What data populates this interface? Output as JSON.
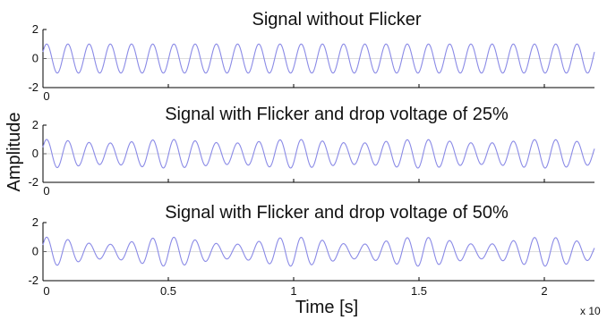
{
  "chart_data": {
    "type": "line",
    "xlabel": "Time [s]",
    "ylabel": "Amplitude",
    "x_exponent_label": "x 10",
    "xlim": [
      0,
      2.2
    ],
    "ylim": [
      -2,
      2
    ],
    "x_ticks": [
      0,
      0.5,
      1,
      1.5,
      2
    ],
    "x_tick_labels": [
      "0",
      "0.5",
      "1",
      "1.5",
      "2"
    ],
    "y_ticks": [
      -2,
      0,
      2
    ],
    "y_tick_labels": [
      "-2",
      "0",
      "2"
    ],
    "line_color": "#8a8ae6",
    "axis_color": "#000000",
    "signal_cycles_shown": 26,
    "panels": [
      {
        "title": "Signal without Flicker",
        "amplitude": 1.0,
        "flicker_depth": 0.0,
        "flicker_cycles": 0,
        "show_x_tick_labels": false
      },
      {
        "title": "Signal with Flicker and drop voltage of 25%",
        "amplitude": 1.0,
        "flicker_depth": 0.25,
        "flicker_cycles": 4.4,
        "show_x_tick_labels": false
      },
      {
        "title": "Signal with Flicker and drop voltage of 50%",
        "amplitude": 1.0,
        "flicker_depth": 0.5,
        "flicker_cycles": 4.4,
        "show_x_tick_labels": true
      }
    ]
  }
}
